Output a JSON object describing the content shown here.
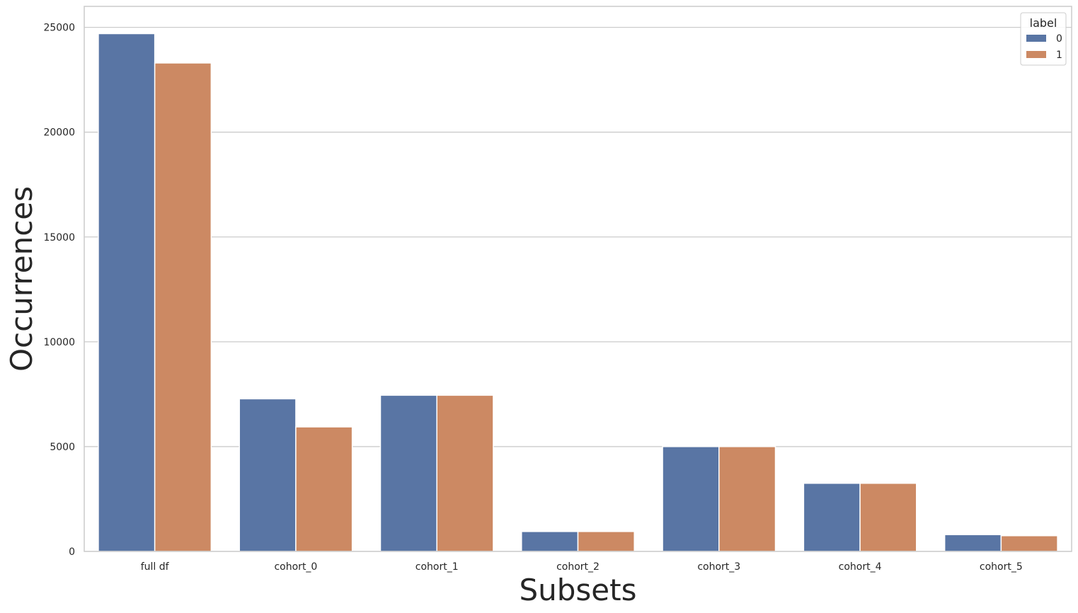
{
  "chart_data": {
    "type": "bar",
    "title": "",
    "xlabel": "Subsets",
    "ylabel": "Occurrences",
    "categories": [
      "full df",
      "cohort_0",
      "cohort_1",
      "cohort_2",
      "cohort_3",
      "cohort_4",
      "cohort_5"
    ],
    "series": [
      {
        "name": "0",
        "color": "#5975a4",
        "values": [
          24700,
          7280,
          7450,
          950,
          5000,
          3250,
          800
        ]
      },
      {
        "name": "1",
        "color": "#cc8963",
        "values": [
          23300,
          5940,
          7450,
          950,
          5000,
          3250,
          750
        ]
      }
    ],
    "ylim": [
      0,
      26000
    ],
    "yticks": [
      0,
      5000,
      10000,
      15000,
      20000,
      25000
    ],
    "ytick_labels": [
      "0",
      "5000",
      "10000",
      "15000",
      "20000",
      "25000"
    ],
    "grid": true,
    "legend": {
      "title": "label",
      "placement": "top-right"
    }
  }
}
